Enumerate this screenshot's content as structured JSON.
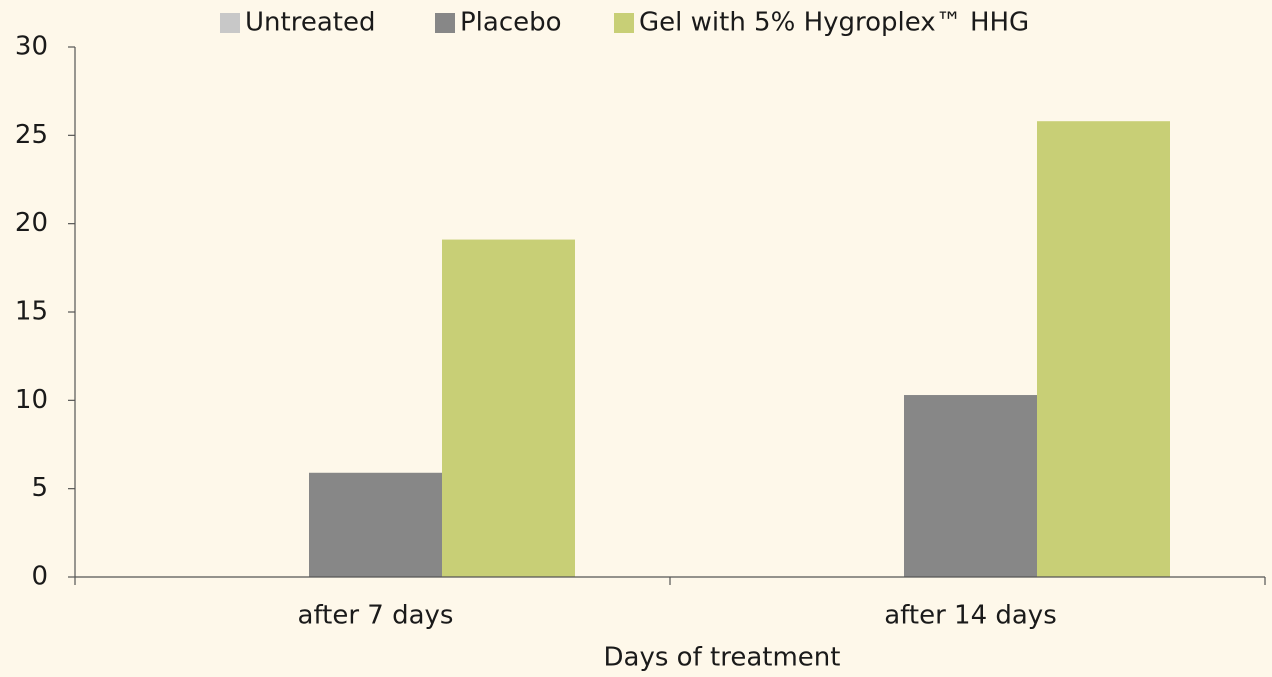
{
  "chart_data": {
    "type": "bar",
    "x_label": "Days of treatment",
    "categories": [
      "after 7 days",
      "after 14 days"
    ],
    "series": [
      {
        "name": "Untreated",
        "color": "#c8c8c8",
        "values": [
          0,
          0
        ]
      },
      {
        "name": "Placebo",
        "color": "#878787",
        "values": [
          5.9,
          10.3
        ]
      },
      {
        "name": "Gel with 5% Hygroplex™ HHG",
        "color": "#c8cf76",
        "values": [
          19.1,
          25.8
        ]
      }
    ],
    "ylim": [
      0,
      30
    ],
    "yticks": [
      0,
      5,
      10,
      15,
      20,
      25,
      30
    ],
    "grid": false,
    "legend": "top"
  }
}
